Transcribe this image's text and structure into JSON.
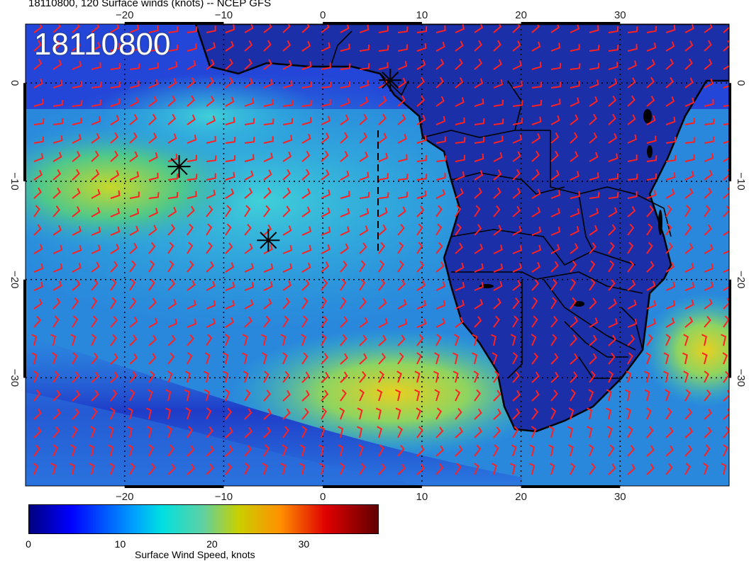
{
  "header": {
    "title": "18110800, 120 Surface winds (knots) -- NCEP GFS"
  },
  "map": {
    "date_label": "18110800",
    "lon_range": [
      -30,
      41
    ],
    "lat_range": [
      -41,
      6
    ],
    "lon_ticks": [
      "−20",
      "−10",
      "0",
      "10",
      "20",
      "30"
    ],
    "lon_tick_values": [
      -20,
      -10,
      0,
      10,
      20,
      30
    ],
    "lat_ticks": [
      "0",
      "−10",
      "−20",
      "−30"
    ],
    "lat_tick_values": [
      0,
      -10,
      -20,
      -30
    ],
    "markers": [
      {
        "lon": -14.5,
        "lat": -8.5,
        "symbol": "asterisk"
      },
      {
        "lon": -5.5,
        "lat": -16,
        "symbol": "asterisk"
      },
      {
        "lon": 6.8,
        "lat": 0.3,
        "symbol": "asterisk"
      }
    ],
    "colors": {
      "ocean_base": "#1e3ad0",
      "land": "#1a2fa8",
      "barb": "#ff2020",
      "coast": "#000000"
    }
  },
  "colorbar": {
    "label": "Surface Wind Speed, knots",
    "ticks": [
      "0",
      "10",
      "20",
      "30"
    ],
    "tick_values": [
      0,
      10,
      20,
      30
    ],
    "max": 38
  }
}
